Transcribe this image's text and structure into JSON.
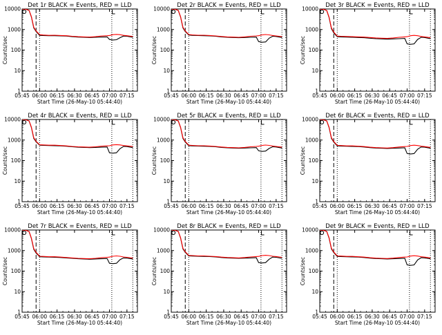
{
  "figure": {
    "xlabel": "Start Time (26-May-10 05:44:40)",
    "ylabel": "Counts/sec",
    "x_tick_labels": [
      "05:45",
      "06:00",
      "06:15",
      "06:30",
      "06:45",
      "07:00",
      "07:15"
    ],
    "y_tick_labels": [
      "1",
      "10",
      "100",
      "1000",
      "10000"
    ],
    "colors": {
      "events": "#000000",
      "lld": "#ff0000",
      "axes": "#000000",
      "background": "#ffffff"
    }
  },
  "chart_data": [
    {
      "type": "line",
      "detector": "1r",
      "title": "Det 1r BLACK = Events, RED = LLD",
      "ylim": [
        1,
        10000
      ],
      "yscale": "log",
      "x": [
        "05:45",
        "05:48",
        "05:51",
        "05:53",
        "05:55",
        "05:57",
        "05:59",
        "06:00",
        "06:03",
        "06:08",
        "06:13",
        "06:18",
        "06:23",
        "06:28",
        "06:33",
        "06:38",
        "06:43",
        "06:48",
        "06:53",
        "06:58",
        "07:00",
        "07:03",
        "07:06",
        "07:09",
        "07:12",
        "07:15",
        "07:20"
      ],
      "series": [
        {
          "values": [
            10000,
            9800,
            8500,
            4000,
            1200,
            800,
            600,
            520,
            510,
            500,
            500,
            490,
            480,
            450,
            430,
            420,
            410,
            420,
            430,
            440,
            330,
            310,
            320,
            400,
            480,
            470,
            420
          ]
        },
        {
          "values": [
            10000,
            9800,
            8600,
            4200,
            1300,
            850,
            650,
            560,
            540,
            520,
            530,
            510,
            500,
            470,
            450,
            440,
            430,
            450,
            480,
            500,
            510,
            560,
            580,
            560,
            520,
            500,
            460
          ]
        }
      ]
    },
    {
      "type": "line",
      "detector": "2r",
      "title": "Det 2r BLACK = Events, RED = LLD",
      "ylim": [
        1,
        10000
      ],
      "yscale": "log",
      "x": [
        "05:45",
        "05:48",
        "05:51",
        "05:53",
        "05:55",
        "05:57",
        "05:59",
        "06:00",
        "06:03",
        "06:08",
        "06:13",
        "06:18",
        "06:23",
        "06:28",
        "06:33",
        "06:38",
        "06:43",
        "06:48",
        "06:53",
        "06:58",
        "07:00",
        "07:03",
        "07:06",
        "07:09",
        "07:12",
        "07:15",
        "07:20"
      ],
      "series": [
        {
          "values": [
            10000,
            9800,
            8500,
            4000,
            1200,
            800,
            620,
            540,
            520,
            510,
            500,
            490,
            470,
            440,
            420,
            410,
            400,
            410,
            420,
            430,
            260,
            240,
            250,
            380,
            470,
            460,
            410
          ]
        },
        {
          "values": [
            10000,
            9800,
            8600,
            4200,
            1300,
            850,
            660,
            570,
            550,
            530,
            530,
            510,
            490,
            460,
            440,
            430,
            420,
            440,
            470,
            490,
            500,
            550,
            570,
            550,
            510,
            490,
            450
          ]
        }
      ]
    },
    {
      "type": "line",
      "detector": "3r",
      "title": "Det 3r BLACK = Events, RED = LLD",
      "ylim": [
        1,
        10000
      ],
      "yscale": "log",
      "x": [
        "05:45",
        "05:48",
        "05:51",
        "05:53",
        "05:55",
        "05:57",
        "05:59",
        "06:00",
        "06:03",
        "06:08",
        "06:13",
        "06:18",
        "06:23",
        "06:28",
        "06:33",
        "06:38",
        "06:43",
        "06:48",
        "06:53",
        "06:58",
        "07:00",
        "07:03",
        "07:06",
        "07:09",
        "07:12",
        "07:15",
        "07:20"
      ],
      "series": [
        {
          "values": [
            10000,
            9800,
            8400,
            3800,
            1100,
            700,
            520,
            450,
            440,
            430,
            420,
            410,
            400,
            380,
            360,
            350,
            340,
            350,
            360,
            370,
            200,
            190,
            200,
            330,
            420,
            410,
            360
          ]
        },
        {
          "values": [
            10000,
            9800,
            8500,
            4000,
            1200,
            760,
            560,
            480,
            470,
            460,
            450,
            440,
            430,
            410,
            390,
            380,
            370,
            390,
            420,
            440,
            450,
            500,
            520,
            500,
            460,
            440,
            400
          ]
        }
      ]
    },
    {
      "type": "line",
      "detector": "4r",
      "title": "Det 4r BLACK = Events, RED = LLD",
      "ylim": [
        1,
        10000
      ],
      "yscale": "log",
      "x": [
        "05:45",
        "05:48",
        "05:51",
        "05:53",
        "05:55",
        "05:57",
        "05:59",
        "06:00",
        "06:03",
        "06:08",
        "06:13",
        "06:18",
        "06:23",
        "06:28",
        "06:33",
        "06:38",
        "06:43",
        "06:48",
        "06:53",
        "06:58",
        "07:00",
        "07:03",
        "07:06",
        "07:09",
        "07:12",
        "07:15",
        "07:20"
      ],
      "series": [
        {
          "values": [
            10000,
            9800,
            8500,
            4000,
            1200,
            820,
            640,
            560,
            550,
            540,
            530,
            520,
            500,
            470,
            450,
            440,
            430,
            440,
            450,
            460,
            240,
            230,
            240,
            380,
            490,
            480,
            430
          ]
        },
        {
          "values": [
            10000,
            9800,
            8600,
            4200,
            1300,
            870,
            680,
            590,
            580,
            560,
            560,
            540,
            520,
            490,
            470,
            460,
            450,
            470,
            500,
            520,
            530,
            580,
            600,
            580,
            540,
            520,
            480
          ]
        }
      ]
    },
    {
      "type": "line",
      "detector": "5r",
      "title": "Det 5r BLACK = Events, RED = LLD",
      "ylim": [
        1,
        10000
      ],
      "yscale": "log",
      "x": [
        "05:45",
        "05:48",
        "05:51",
        "05:53",
        "05:55",
        "05:57",
        "05:59",
        "06:00",
        "06:03",
        "06:08",
        "06:13",
        "06:18",
        "06:23",
        "06:28",
        "06:33",
        "06:38",
        "06:43",
        "06:48",
        "06:53",
        "06:58",
        "07:00",
        "07:03",
        "07:06",
        "07:09",
        "07:12",
        "07:15",
        "07:20"
      ],
      "series": [
        {
          "values": [
            10000,
            9800,
            8500,
            4000,
            1200,
            800,
            610,
            530,
            520,
            510,
            500,
            490,
            470,
            440,
            420,
            410,
            400,
            410,
            420,
            430,
            300,
            280,
            290,
            390,
            470,
            460,
            410
          ]
        },
        {
          "values": [
            10000,
            9800,
            8600,
            4200,
            1300,
            850,
            650,
            560,
            550,
            530,
            530,
            510,
            490,
            460,
            440,
            430,
            420,
            440,
            470,
            490,
            500,
            550,
            570,
            550,
            510,
            490,
            450
          ]
        }
      ]
    },
    {
      "type": "line",
      "detector": "6r",
      "title": "Det 6r BLACK = Events, RED = LLD",
      "ylim": [
        1,
        10000
      ],
      "yscale": "log",
      "x": [
        "05:45",
        "05:48",
        "05:51",
        "05:53",
        "05:55",
        "05:57",
        "05:59",
        "06:00",
        "06:03",
        "06:08",
        "06:13",
        "06:18",
        "06:23",
        "06:28",
        "06:33",
        "06:38",
        "06:43",
        "06:48",
        "06:53",
        "06:58",
        "07:00",
        "07:03",
        "07:06",
        "07:09",
        "07:12",
        "07:15",
        "07:20"
      ],
      "series": [
        {
          "values": [
            10000,
            9800,
            8500,
            4000,
            1200,
            800,
            600,
            520,
            510,
            500,
            490,
            480,
            460,
            430,
            410,
            400,
            390,
            400,
            410,
            420,
            220,
            210,
            220,
            360,
            460,
            450,
            400
          ]
        },
        {
          "values": [
            10000,
            9800,
            8600,
            4200,
            1300,
            850,
            640,
            550,
            540,
            520,
            520,
            500,
            480,
            450,
            430,
            420,
            410,
            430,
            460,
            480,
            490,
            540,
            560,
            540,
            500,
            480,
            440
          ]
        }
      ]
    },
    {
      "type": "line",
      "detector": "7r",
      "title": "Det 7r BLACK = Events, RED = LLD",
      "ylim": [
        1,
        10000
      ],
      "yscale": "log",
      "x": [
        "05:45",
        "05:48",
        "05:51",
        "05:53",
        "05:55",
        "05:57",
        "05:59",
        "06:00",
        "06:03",
        "06:08",
        "06:13",
        "06:18",
        "06:23",
        "06:28",
        "06:33",
        "06:38",
        "06:43",
        "06:48",
        "06:53",
        "06:58",
        "07:00",
        "07:03",
        "07:06",
        "07:09",
        "07:12",
        "07:15",
        "07:20"
      ],
      "series": [
        {
          "values": [
            10000,
            9800,
            8400,
            3800,
            1150,
            760,
            580,
            500,
            490,
            480,
            470,
            460,
            440,
            420,
            400,
            390,
            380,
            390,
            400,
            410,
            240,
            230,
            240,
            360,
            440,
            430,
            390
          ]
        },
        {
          "values": [
            10000,
            9800,
            8500,
            4000,
            1250,
            820,
            620,
            530,
            520,
            500,
            500,
            480,
            460,
            440,
            420,
            410,
            400,
            420,
            450,
            470,
            480,
            530,
            550,
            530,
            490,
            470,
            430
          ]
        }
      ]
    },
    {
      "type": "line",
      "detector": "8r",
      "title": "Det 8r BLACK = Events, RED = LLD",
      "ylim": [
        1,
        10000
      ],
      "yscale": "log",
      "x": [
        "05:45",
        "05:48",
        "05:51",
        "05:53",
        "05:55",
        "05:57",
        "05:59",
        "06:00",
        "06:03",
        "06:08",
        "06:13",
        "06:18",
        "06:23",
        "06:28",
        "06:33",
        "06:38",
        "06:43",
        "06:48",
        "06:53",
        "06:58",
        "07:00",
        "07:03",
        "07:06",
        "07:09",
        "07:12",
        "07:15",
        "07:20"
      ],
      "series": [
        {
          "values": [
            10000,
            9800,
            8500,
            4000,
            1200,
            820,
            630,
            550,
            540,
            530,
            520,
            510,
            490,
            460,
            440,
            430,
            420,
            430,
            440,
            450,
            260,
            250,
            260,
            380,
            480,
            470,
            420
          ]
        },
        {
          "values": [
            10000,
            9800,
            8600,
            4200,
            1300,
            870,
            670,
            580,
            570,
            550,
            550,
            530,
            510,
            480,
            460,
            450,
            440,
            460,
            490,
            510,
            520,
            570,
            590,
            570,
            530,
            510,
            470
          ]
        }
      ]
    },
    {
      "type": "line",
      "detector": "9r",
      "title": "Det 9r BLACK = Events, RED = LLD",
      "ylim": [
        1,
        10000
      ],
      "yscale": "log",
      "x": [
        "05:45",
        "05:48",
        "05:51",
        "05:53",
        "05:55",
        "05:57",
        "05:59",
        "06:00",
        "06:03",
        "06:08",
        "06:13",
        "06:18",
        "06:23",
        "06:28",
        "06:33",
        "06:38",
        "06:43",
        "06:48",
        "06:53",
        "06:58",
        "07:00",
        "07:03",
        "07:06",
        "07:09",
        "07:12",
        "07:15",
        "07:20"
      ],
      "series": [
        {
          "values": [
            10000,
            9800,
            8500,
            4000,
            1200,
            800,
            600,
            520,
            510,
            500,
            490,
            480,
            460,
            430,
            410,
            400,
            390,
            400,
            410,
            420,
            200,
            190,
            200,
            350,
            450,
            440,
            400
          ]
        },
        {
          "values": [
            10000,
            9800,
            8600,
            4200,
            1300,
            850,
            640,
            550,
            540,
            520,
            520,
            500,
            480,
            450,
            430,
            420,
            410,
            430,
            460,
            480,
            490,
            540,
            560,
            540,
            500,
            480,
            440
          ]
        }
      ]
    }
  ]
}
